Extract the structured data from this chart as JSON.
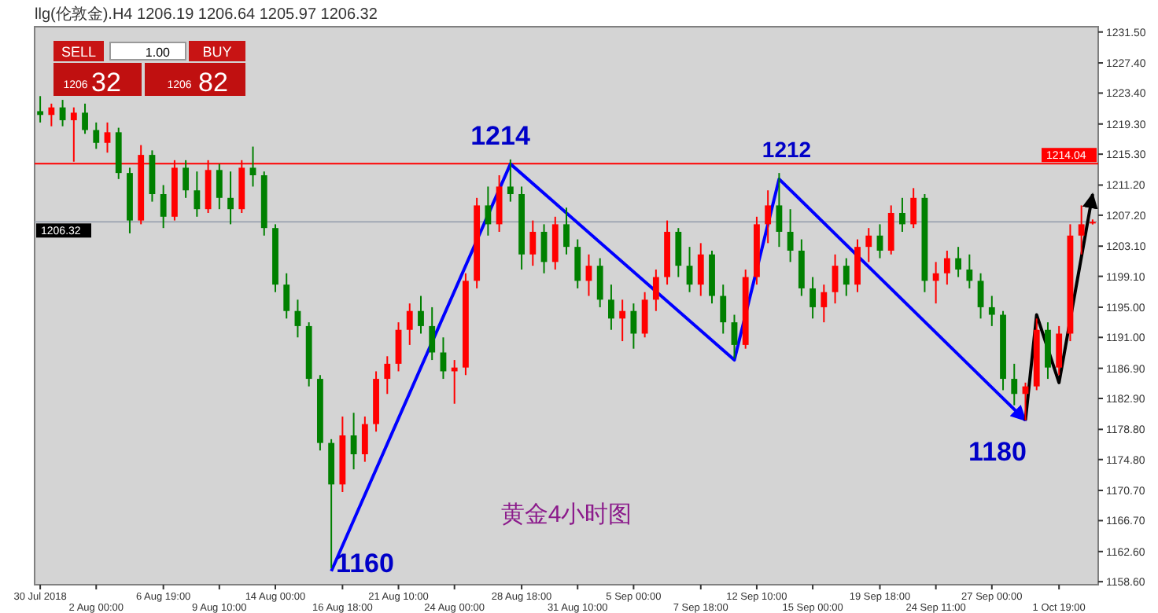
{
  "chart_data": {
    "type": "candlestick",
    "title": "llg(伦敦金).H4  1206.19 1206.64 1205.97 1206.32",
    "categories": [
      "30 Jul 2018",
      null,
      null,
      null,
      null,
      "2 Aug 00:00",
      null,
      null,
      null,
      null,
      null,
      "6 Aug 19:00",
      null,
      null,
      null,
      null,
      "9 Aug 10:00",
      null,
      null,
      null,
      null,
      "14 Aug 00:00",
      null,
      null,
      null,
      null,
      null,
      "16 Aug 18:00",
      null,
      null,
      null,
      null,
      "21 Aug 10:00",
      null,
      null,
      null,
      null,
      "24 Aug 00:00",
      null,
      null,
      null,
      null,
      null,
      "28 Aug 18:00",
      null,
      null,
      null,
      null,
      "31 Aug 10:00",
      null,
      null,
      null,
      null,
      "5 Sep 00:00",
      null,
      null,
      null,
      null,
      null,
      "7 Sep 18:00",
      null,
      null,
      null,
      null,
      "12 Sep 10:00",
      null,
      null,
      null,
      null,
      "15 Sep 00:00",
      null,
      null,
      null,
      null,
      null,
      "19 Sep 18:00",
      null,
      null,
      null,
      null,
      "24 Sep 11:00",
      null,
      null,
      null,
      null,
      "27 Sep 00:00",
      null,
      null,
      null,
      null,
      null,
      "1 Oct 19:00",
      null,
      null,
      null
    ],
    "ohlc": [
      [
        1221,
        1223,
        1219.5,
        1220.5
      ],
      [
        1220.5,
        1222,
        1219,
        1221.5
      ],
      [
        1221.5,
        1222.5,
        1219,
        1219.8
      ],
      [
        1219.8,
        1221.5,
        1214.3,
        1220.8
      ],
      [
        1220.8,
        1222,
        1218,
        1218.5
      ],
      [
        1218.5,
        1219.5,
        1216,
        1216.8
      ],
      [
        1216.8,
        1219.5,
        1215.5,
        1218.2
      ],
      [
        1218.2,
        1218.8,
        1212,
        1212.8
      ],
      [
        1212.8,
        1213.5,
        1204.8,
        1206.5
      ],
      [
        1206.5,
        1216.5,
        1206,
        1215.2
      ],
      [
        1215.2,
        1215.8,
        1209,
        1210
      ],
      [
        1210,
        1211.2,
        1205.5,
        1207
      ],
      [
        1207,
        1214.5,
        1206.5,
        1213.5
      ],
      [
        1213.5,
        1214.5,
        1209.5,
        1210.5
      ],
      [
        1210.5,
        1213,
        1207,
        1208
      ],
      [
        1208,
        1214.5,
        1207.5,
        1213.2
      ],
      [
        1213.2,
        1214,
        1208,
        1209.5
      ],
      [
        1209.5,
        1213,
        1206,
        1208
      ],
      [
        1208,
        1214.5,
        1207.5,
        1213.5
      ],
      [
        1213.5,
        1216.3,
        1211,
        1212.5
      ],
      [
        1212.5,
        1213,
        1204.5,
        1205.5
      ],
      [
        1205.5,
        1206,
        1197,
        1198
      ],
      [
        1198,
        1199.5,
        1193.5,
        1194.5
      ],
      [
        1194.5,
        1196,
        1191,
        1192.5
      ],
      [
        1192.5,
        1193,
        1184.5,
        1185.5
      ],
      [
        1185.5,
        1186,
        1176,
        1177
      ],
      [
        1177,
        1177.5,
        1160.4,
        1171.5
      ],
      [
        1171.5,
        1180.5,
        1170.5,
        1178
      ],
      [
        1178,
        1181,
        1173.5,
        1175.5
      ],
      [
        1175.5,
        1180.5,
        1174.5,
        1179.5
      ],
      [
        1179.5,
        1186.5,
        1178.5,
        1185.5
      ],
      [
        1185.5,
        1188.5,
        1183.5,
        1187.5
      ],
      [
        1187.5,
        1193,
        1186.5,
        1192
      ],
      [
        1192,
        1195.5,
        1190,
        1194.5
      ],
      [
        1194.5,
        1196.5,
        1191.5,
        1192.5
      ],
      [
        1192.5,
        1195,
        1188,
        1189
      ],
      [
        1189,
        1191,
        1185.5,
        1186.5
      ],
      [
        1186.5,
        1188,
        1182.2,
        1187
      ],
      [
        1187,
        1199.5,
        1186,
        1198.5
      ],
      [
        1198.5,
        1209.5,
        1197.5,
        1208.5
      ],
      [
        1208.5,
        1211,
        1204.5,
        1206
      ],
      [
        1206,
        1212.5,
        1205,
        1211
      ],
      [
        1211,
        1214.6,
        1209,
        1210
      ],
      [
        1210,
        1211,
        1200,
        1202
      ],
      [
        1202,
        1206.5,
        1200.5,
        1205
      ],
      [
        1205,
        1206,
        1199.5,
        1201
      ],
      [
        1201,
        1207,
        1200,
        1206
      ],
      [
        1206,
        1208.2,
        1202,
        1203
      ],
      [
        1203,
        1204,
        1197.5,
        1198.5
      ],
      [
        1198.5,
        1202,
        1196.5,
        1200.5
      ],
      [
        1200.5,
        1201.5,
        1195,
        1196
      ],
      [
        1196,
        1198,
        1192,
        1193.5
      ],
      [
        1193.5,
        1196,
        1190.5,
        1194.5
      ],
      [
        1194.5,
        1195.5,
        1189.5,
        1191.5
      ],
      [
        1191.5,
        1197,
        1191,
        1196
      ],
      [
        1196,
        1200,
        1194.5,
        1199
      ],
      [
        1199,
        1206.5,
        1198,
        1205
      ],
      [
        1205,
        1205.5,
        1199,
        1200.5
      ],
      [
        1200.5,
        1203,
        1197,
        1198
      ],
      [
        1198,
        1203.5,
        1196.5,
        1202
      ],
      [
        1202,
        1202.5,
        1195.5,
        1196.5
      ],
      [
        1196.5,
        1198,
        1191.5,
        1193
      ],
      [
        1193,
        1194,
        1188.2,
        1190
      ],
      [
        1190,
        1200,
        1189.5,
        1199
      ],
      [
        1199,
        1207,
        1198,
        1206
      ],
      [
        1206,
        1210.5,
        1203.5,
        1208.5
      ],
      [
        1208.5,
        1212.8,
        1203,
        1205
      ],
      [
        1205,
        1208,
        1201,
        1202.5
      ],
      [
        1202.5,
        1204,
        1196.5,
        1197.5
      ],
      [
        1197.5,
        1199,
        1193.5,
        1195
      ],
      [
        1195,
        1198,
        1193,
        1197
      ],
      [
        1197,
        1202,
        1195.5,
        1200.5
      ],
      [
        1200.5,
        1201.5,
        1196.5,
        1198
      ],
      [
        1198,
        1204,
        1197,
        1203
      ],
      [
        1203,
        1205.5,
        1201,
        1204.5
      ],
      [
        1204.5,
        1206,
        1201.5,
        1202.5
      ],
      [
        1202.5,
        1208.5,
        1202,
        1207.5
      ],
      [
        1207.5,
        1209.5,
        1205,
        1206
      ],
      [
        1206,
        1210.8,
        1205.5,
        1209.5
      ],
      [
        1209.5,
        1210,
        1197,
        1198.5
      ],
      [
        1198.5,
        1201,
        1195.5,
        1199.5
      ],
      [
        1199.5,
        1202.5,
        1198,
        1201.5
      ],
      [
        1201.5,
        1203,
        1199,
        1200
      ],
      [
        1200,
        1202,
        1197.5,
        1198.5
      ],
      [
        1198.5,
        1199.5,
        1193.5,
        1195
      ],
      [
        1195,
        1196.5,
        1192.5,
        1194
      ],
      [
        1194,
        1194.5,
        1184,
        1185.5
      ],
      [
        1185.5,
        1187.5,
        1182,
        1183.5
      ],
      [
        1183.5,
        1185,
        1180,
        1184.5
      ],
      [
        1184.5,
        1193.5,
        1184,
        1192
      ],
      [
        1192,
        1193,
        1185.5,
        1187
      ],
      [
        1187,
        1192.5,
        1186,
        1191.5
      ],
      [
        1191.5,
        1206,
        1190.5,
        1204.5
      ],
      [
        1204.5,
        1208.5,
        1202,
        1206
      ],
      [
        1206.19,
        1206.64,
        1205.97,
        1206.32
      ]
    ],
    "colors": [
      "#008000",
      "#ff0000",
      "#008000",
      "#ff0000",
      "#008000",
      "#008000",
      "#ff0000",
      "#008000",
      "#008000",
      "#ff0000",
      "#008000",
      "#008000",
      "#ff0000",
      "#008000",
      "#008000",
      "#ff0000",
      "#008000",
      "#008000",
      "#ff0000",
      "#008000",
      "#008000",
      "#008000",
      "#008000",
      "#008000",
      "#008000",
      "#008000",
      "#008000",
      "#ff0000",
      "#008000",
      "#ff0000",
      "#ff0000",
      "#ff0000",
      "#ff0000",
      "#ff0000",
      "#008000",
      "#008000",
      "#008000",
      "#ff0000",
      "#ff0000",
      "#ff0000",
      "#008000",
      "#ff0000",
      "#008000",
      "#008000",
      "#ff0000",
      "#008000",
      "#ff0000",
      "#008000",
      "#008000",
      "#ff0000",
      "#008000",
      "#008000",
      "#ff0000",
      "#008000",
      "#ff0000",
      "#ff0000",
      "#ff0000",
      "#008000",
      "#008000",
      "#ff0000",
      "#008000",
      "#008000",
      "#008000",
      "#ff0000",
      "#ff0000",
      "#ff0000",
      "#008000",
      "#008000",
      "#008000",
      "#008000",
      "#ff0000",
      "#ff0000",
      "#008000",
      "#ff0000",
      "#ff0000",
      "#008000",
      "#ff0000",
      "#008000",
      "#ff0000",
      "#008000",
      "#ff0000",
      "#ff0000",
      "#008000",
      "#008000",
      "#008000",
      "#008000",
      "#008000",
      "#008000",
      "#ff0000",
      "#ff0000",
      "#008000",
      "#ff0000",
      "#ff0000",
      "#ff0000",
      "#ff0000"
    ],
    "series": [
      {
        "type": "line",
        "color": "#0000ff",
        "values": [
          null,
          null,
          null,
          null,
          null,
          null,
          null,
          null,
          null,
          null,
          null,
          null,
          null,
          null,
          null,
          null,
          null,
          null,
          null,
          null,
          null,
          null,
          null,
          null,
          null,
          null,
          1160,
          null,
          null,
          null,
          null,
          null,
          null,
          null,
          null,
          null,
          null,
          null,
          null,
          null,
          null,
          null,
          1214,
          null,
          null,
          null,
          null,
          null,
          null,
          null,
          null,
          null,
          null,
          null,
          null,
          null,
          null,
          null,
          null,
          null,
          null,
          null,
          1188,
          null,
          null,
          null,
          1212,
          null,
          null,
          null,
          null,
          null,
          null,
          null,
          null,
          null,
          null,
          null,
          null,
          null,
          null,
          null,
          null,
          null,
          null,
          null,
          null,
          null,
          1180,
          null,
          null,
          null,
          null,
          null,
          null
        ]
      },
      {
        "type": "line",
        "color": "#000000",
        "values": [
          null,
          null,
          null,
          null,
          null,
          null,
          null,
          null,
          null,
          null,
          null,
          null,
          null,
          null,
          null,
          null,
          null,
          null,
          null,
          null,
          null,
          null,
          null,
          null,
          null,
          null,
          null,
          null,
          null,
          null,
          null,
          null,
          null,
          null,
          null,
          null,
          null,
          null,
          null,
          null,
          null,
          null,
          null,
          null,
          null,
          null,
          null,
          null,
          null,
          null,
          null,
          null,
          null,
          null,
          null,
          null,
          null,
          null,
          null,
          null,
          null,
          null,
          null,
          null,
          null,
          null,
          null,
          null,
          null,
          null,
          null,
          null,
          null,
          null,
          null,
          null,
          null,
          null,
          null,
          null,
          null,
          null,
          null,
          null,
          null,
          null,
          null,
          null,
          1180,
          1194,
          null,
          1185,
          null,
          null,
          1210
        ]
      }
    ],
    "ref_lines": [
      {
        "axis": "y",
        "value": 1214.04,
        "label": "1214.04",
        "color": "#ff0000"
      },
      {
        "axis": "y",
        "value": 1206.32,
        "label": "1206.32",
        "color": "#a0a8b4"
      }
    ],
    "annotations": [
      "SELL",
      "BUY",
      "1.00",
      "1206",
      "32",
      "1206",
      "82",
      "黄金4小时图",
      "1214",
      "1212",
      "1160",
      "1180"
    ],
    "ylim": [
      1158.2,
      1232.2
    ],
    "yticks": [
      {
        "value": 1158.6,
        "label": "1158.60"
      },
      {
        "value": 1162.6,
        "label": "1162.60"
      },
      {
        "value": 1166.7,
        "label": "1166.70"
      },
      {
        "value": 1170.7,
        "label": "1170.70"
      },
      {
        "value": 1174.8,
        "label": "1174.80"
      },
      {
        "value": 1178.8,
        "label": "1178.80"
      },
      {
        "value": 1182.9,
        "label": "1182.90"
      },
      {
        "value": 1186.9,
        "label": "1186.90"
      },
      {
        "value": 1191,
        "label": "1191.00"
      },
      {
        "value": 1195,
        "label": "1195.00"
      },
      {
        "value": 1199.1,
        "label": "1199.10"
      },
      {
        "value": 1203.1,
        "label": "1203.10"
      },
      {
        "value": 1207.2,
        "label": "1207.20"
      },
      {
        "value": 1211.2,
        "label": "1211.20"
      },
      {
        "value": 1215.3,
        "label": "1215.30"
      },
      {
        "value": 1219.3,
        "label": "1219.30"
      },
      {
        "value": 1223.4,
        "label": "1223.40"
      },
      {
        "value": 1227.4,
        "label": "1227.40"
      },
      {
        "value": 1231.5,
        "label": "1231.50"
      }
    ]
  }
}
